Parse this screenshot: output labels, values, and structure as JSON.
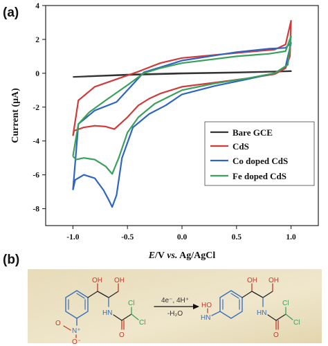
{
  "panel_a_label": "(a)",
  "panel_b_label": "(b)",
  "chart_data": {
    "type": "line",
    "title": "",
    "xlabel_parts": [
      "E",
      "/V ",
      "vs.",
      " Ag/AgCl"
    ],
    "ylabel": "Current (μA)",
    "xlim": [
      -1.25,
      1.25
    ],
    "ylim": [
      -9,
      4
    ],
    "x_ticks": [
      "-1.0",
      "-0.5",
      "0.0",
      "0.5",
      "1.0"
    ],
    "x_tick_values": [
      -1.0,
      -0.5,
      0.0,
      0.5,
      1.0
    ],
    "y_ticks": [
      "4",
      "2",
      "0",
      "-2",
      "-4",
      "-6",
      "-8"
    ],
    "y_tick_values": [
      4,
      2,
      0,
      -2,
      -4,
      -6,
      -8
    ],
    "grid": false,
    "legend_position": "bottom-right",
    "series": [
      {
        "name": "Bare GCE",
        "color": "#333333",
        "points": [
          [
            -1.0,
            -0.22
          ],
          [
            -0.5,
            -0.08
          ],
          [
            0.0,
            0.0
          ],
          [
            0.5,
            0.05
          ],
          [
            1.0,
            0.12
          ],
          [
            0.5,
            0.04
          ],
          [
            0.0,
            -0.02
          ],
          [
            -0.5,
            -0.1
          ],
          [
            -1.0,
            -0.22
          ]
        ]
      },
      {
        "name": "CdS",
        "color": "#d23a3a",
        "points": [
          [
            -1.0,
            -3.7
          ],
          [
            -0.99,
            -3.4
          ],
          [
            -0.9,
            -3.2
          ],
          [
            -0.8,
            -3.1
          ],
          [
            -0.7,
            -3.15
          ],
          [
            -0.62,
            -3.3
          ],
          [
            -0.5,
            -2.6
          ],
          [
            -0.4,
            -1.9
          ],
          [
            -0.3,
            -1.5
          ],
          [
            -0.2,
            -1.2
          ],
          [
            0.0,
            -0.8
          ],
          [
            0.3,
            -0.55
          ],
          [
            0.6,
            -0.3
          ],
          [
            0.85,
            -0.05
          ],
          [
            0.95,
            0.3
          ],
          [
            0.99,
            1.0
          ],
          [
            1.0,
            3.1
          ],
          [
            0.95,
            1.7
          ],
          [
            0.85,
            1.4
          ],
          [
            0.5,
            1.2
          ],
          [
            0.0,
            0.9
          ],
          [
            -0.2,
            0.6
          ],
          [
            -0.4,
            0.1
          ],
          [
            -0.6,
            -0.35
          ],
          [
            -0.8,
            -0.8
          ],
          [
            -0.95,
            -1.6
          ],
          [
            -1.0,
            -3.7
          ]
        ]
      },
      {
        "name": "Co doped CdS",
        "color": "#2e64c3",
        "points": [
          [
            -1.0,
            -6.9
          ],
          [
            -0.98,
            -6.3
          ],
          [
            -0.9,
            -6.0
          ],
          [
            -0.8,
            -6.2
          ],
          [
            -0.72,
            -6.9
          ],
          [
            -0.67,
            -7.5
          ],
          [
            -0.64,
            -7.9
          ],
          [
            -0.6,
            -7.2
          ],
          [
            -0.55,
            -5.0
          ],
          [
            -0.45,
            -3.2
          ],
          [
            -0.3,
            -2.4
          ],
          [
            -0.15,
            -1.9
          ],
          [
            0.0,
            -1.25
          ],
          [
            0.3,
            -0.75
          ],
          [
            0.6,
            -0.35
          ],
          [
            0.85,
            0.0
          ],
          [
            0.95,
            0.4
          ],
          [
            1.0,
            1.8
          ],
          [
            0.95,
            1.5
          ],
          [
            0.8,
            1.45
          ],
          [
            0.5,
            1.25
          ],
          [
            0.0,
            0.75
          ],
          [
            -0.2,
            0.35
          ],
          [
            -0.35,
            0.05
          ],
          [
            -0.5,
            -1.0
          ],
          [
            -0.6,
            -1.7
          ],
          [
            -0.8,
            -2.2
          ],
          [
            -0.95,
            -3.0
          ],
          [
            -1.0,
            -6.9
          ]
        ]
      },
      {
        "name": "Fe doped CdS",
        "color": "#3aa05a",
        "points": [
          [
            -1.0,
            -4.9
          ],
          [
            -0.97,
            -5.1
          ],
          [
            -0.9,
            -5.0
          ],
          [
            -0.8,
            -5.1
          ],
          [
            -0.7,
            -5.5
          ],
          [
            -0.64,
            -5.95
          ],
          [
            -0.58,
            -5.0
          ],
          [
            -0.5,
            -3.5
          ],
          [
            -0.4,
            -2.6
          ],
          [
            -0.25,
            -1.8
          ],
          [
            0.0,
            -1.0
          ],
          [
            0.3,
            -0.6
          ],
          [
            0.6,
            -0.3
          ],
          [
            0.85,
            0.0
          ],
          [
            0.97,
            0.5
          ],
          [
            1.0,
            2.2
          ],
          [
            0.95,
            1.3
          ],
          [
            0.8,
            1.15
          ],
          [
            0.5,
            1.0
          ],
          [
            0.0,
            0.6
          ],
          [
            -0.2,
            0.3
          ],
          [
            -0.35,
            0.0
          ],
          [
            -0.5,
            -0.7
          ],
          [
            -0.7,
            -1.6
          ],
          [
            -0.85,
            -2.3
          ],
          [
            -0.95,
            -3.0
          ],
          [
            -1.0,
            -4.9
          ]
        ]
      }
    ]
  },
  "scheme": {
    "arrow_top": "4e⁻, 4H⁺",
    "arrow_bottom": "-H₂O",
    "reactant": {
      "oh_top_left": "OH",
      "oh_top_right": "OH",
      "nh": "HN",
      "cl_top": "Cl",
      "cl_right": "Cl",
      "o_carbonyl": "O",
      "n_plus": "N⁺",
      "o_top": "O",
      "o_minus": "O⁻"
    },
    "product": {
      "oh_top_left": "OH",
      "oh_top_right": "OH",
      "hn_left": "HN",
      "ho": "HO",
      "nh": "HN",
      "cl_top": "Cl",
      "cl_right": "Cl",
      "o_carbonyl": "O"
    }
  }
}
